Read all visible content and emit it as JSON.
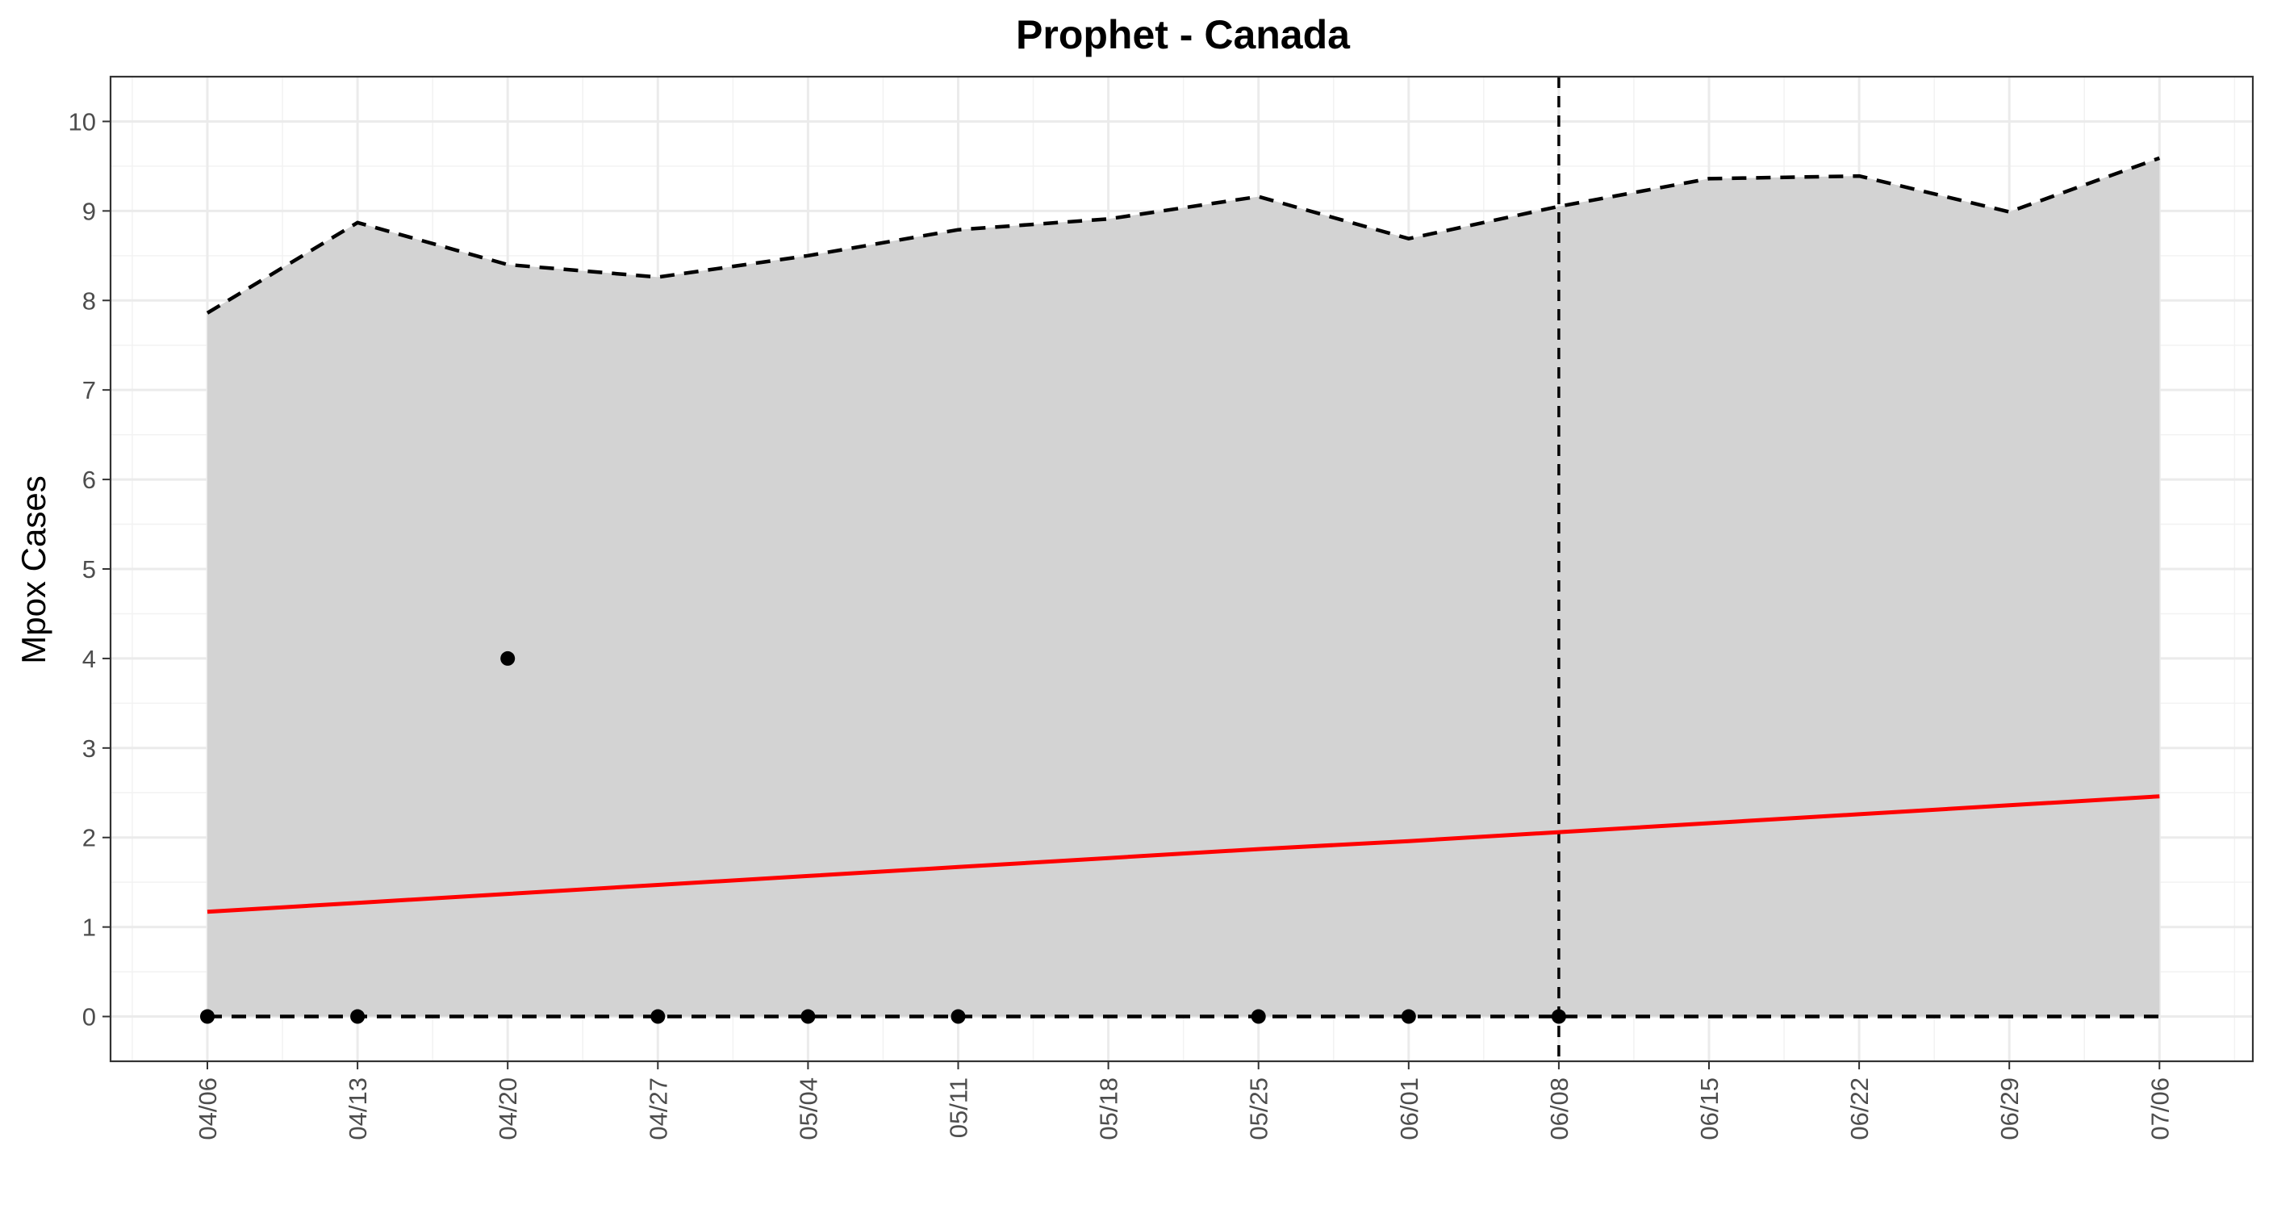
{
  "chart_data": {
    "type": "line",
    "title": "Prophet - Canada",
    "xlabel": "",
    "ylabel": "Mpox Cases",
    "x_tick_labels": [
      "04/06",
      "04/13",
      "04/20",
      "04/27",
      "05/04",
      "05/11",
      "05/18",
      "05/25",
      "06/01",
      "06/08",
      "06/15",
      "06/22",
      "06/29",
      "07/06"
    ],
    "ylim": [
      -0.5,
      10.5
    ],
    "y_ticks": [
      0,
      1,
      2,
      3,
      4,
      5,
      6,
      7,
      8,
      9,
      10
    ],
    "grid": true,
    "series": [
      {
        "role": "upper_bound",
        "style": "dashed",
        "color": "#000000",
        "values": [
          7.86,
          8.87,
          8.4,
          8.26,
          8.5,
          8.79,
          8.91,
          9.16,
          8.69,
          9.05,
          9.36,
          9.39,
          8.99,
          9.59
        ]
      },
      {
        "role": "lower_bound",
        "style": "dashed",
        "color": "#000000",
        "values": [
          0,
          0,
          0,
          0,
          0,
          0,
          0,
          0,
          0,
          0,
          0,
          0,
          0,
          0
        ]
      },
      {
        "role": "forecast",
        "style": "solid",
        "color": "#ff0000",
        "values": [
          1.17,
          1.27,
          1.37,
          1.47,
          1.57,
          1.67,
          1.77,
          1.87,
          1.96,
          2.06,
          2.16,
          2.26,
          2.36,
          2.46
        ]
      },
      {
        "role": "observed",
        "style": "points",
        "color": "#000000",
        "x_index": [
          0,
          1,
          2,
          3,
          4,
          5,
          7,
          8,
          9
        ],
        "values": [
          0,
          0,
          4,
          0,
          0,
          0,
          0,
          0,
          0
        ]
      }
    ],
    "band_fill": "#d3d3d3",
    "vertical_line": {
      "x_label": "06/08",
      "style": "dashed",
      "color": "#000000"
    }
  }
}
